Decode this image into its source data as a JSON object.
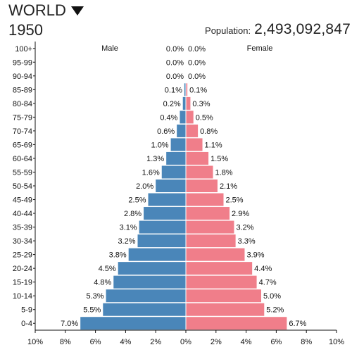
{
  "header": {
    "region": "WORLD",
    "year": "1950",
    "population_label": "Population:",
    "population_value": "2,493,092,847"
  },
  "colors": {
    "male": "#4a86b9",
    "female": "#f07e8a"
  },
  "icons": {
    "region_dropdown": "triangle-down-icon"
  },
  "chart_data": {
    "type": "bar",
    "orientation": "horizontal",
    "categories": [
      "100+",
      "95-99",
      "90-94",
      "85-89",
      "80-84",
      "75-79",
      "70-74",
      "65-69",
      "60-64",
      "55-59",
      "50-54",
      "45-49",
      "40-44",
      "35-39",
      "30-34",
      "25-29",
      "20-24",
      "15-19",
      "10-14",
      "5-9",
      "0-4"
    ],
    "series": [
      {
        "name": "Male",
        "values": [
          0.0,
          0.0,
          0.0,
          0.1,
          0.2,
          0.4,
          0.6,
          1.0,
          1.3,
          1.6,
          2.0,
          2.5,
          2.8,
          3.1,
          3.2,
          3.8,
          4.5,
          4.8,
          5.3,
          5.5,
          7.0
        ]
      },
      {
        "name": "Female",
        "values": [
          0.0,
          0.0,
          0.0,
          0.1,
          0.3,
          0.5,
          0.8,
          1.1,
          1.5,
          1.8,
          2.1,
          2.5,
          2.9,
          3.2,
          3.3,
          3.9,
          4.4,
          4.7,
          5.0,
          5.2,
          6.7
        ]
      }
    ],
    "x_ticks": [
      "10%",
      "8%",
      "6%",
      "4%",
      "2%",
      "0%",
      "2%",
      "4%",
      "6%",
      "8%",
      "10%"
    ],
    "xlim": [
      -10,
      10
    ],
    "value_suffix": "%",
    "grid": false
  }
}
